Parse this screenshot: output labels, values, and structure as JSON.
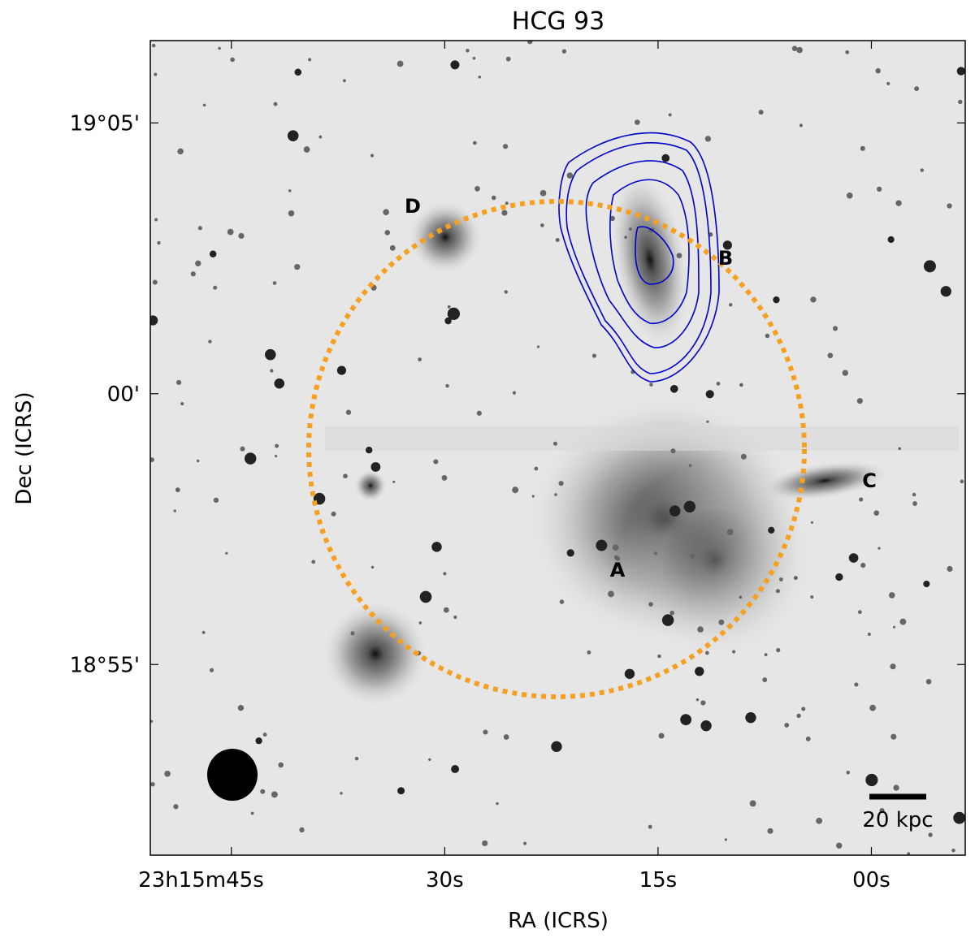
{
  "chart_data": {
    "type": "image",
    "title": "HCG 93",
    "xlabel": "RA (ICRS)",
    "ylabel": "Dec (ICRS)",
    "xlim": [
      50.7,
      -6.6
    ],
    "ylim": [
      6.52,
      -8.52
    ],
    "xticks": [
      {
        "value": 45,
        "label": "23h15m45s"
      },
      {
        "value": 30,
        "label": "30s"
      },
      {
        "value": 15,
        "label": "15s"
      },
      {
        "value": 0,
        "label": "00s"
      }
    ],
    "yticks": [
      {
        "value": 5,
        "label": "19°05'"
      },
      {
        "value": 0,
        "label": "00'"
      },
      {
        "value": -5,
        "label": "18°55'"
      }
    ],
    "annotations": [
      "A",
      "B",
      "C",
      "D"
    ],
    "scale_bar": "20 kpc"
  }
}
